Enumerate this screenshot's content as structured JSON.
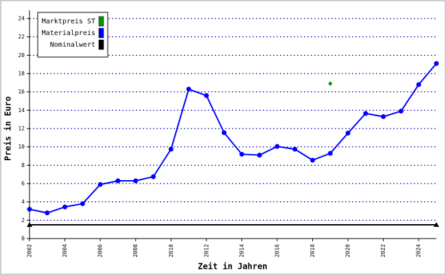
{
  "chart_data": {
    "type": "line",
    "x_label": "Zeit in Jahren",
    "y_label": "Preis in Euro",
    "x": [
      2002,
      2003,
      2004,
      2005,
      2006,
      2007,
      2008,
      2009,
      2010,
      2011,
      2012,
      2013,
      2014,
      2015,
      2016,
      2017,
      2018,
      2019,
      2020,
      2021,
      2022,
      2023,
      2024,
      2025
    ],
    "series": [
      {
        "name": "Marktpreis ST",
        "color": "#009900",
        "marker": "diamond",
        "x": [
          2019
        ],
        "values": [
          16.9
        ]
      },
      {
        "name": "Materialpreis",
        "color": "#0000ff",
        "marker": "circle",
        "values": [
          3.2,
          2.8,
          3.45,
          3.8,
          5.9,
          6.3,
          6.3,
          6.75,
          9.75,
          16.3,
          15.6,
          11.55,
          9.2,
          9.1,
          10.05,
          9.75,
          8.55,
          9.3,
          11.5,
          13.65,
          13.3,
          13.9,
          16.8,
          19.1
        ]
      },
      {
        "name": "Nominalwert",
        "color": "#000000",
        "marker": "triangle",
        "x": [
          2002,
          2025
        ],
        "values": [
          1.5,
          1.5
        ]
      }
    ],
    "xlim": [
      2002,
      2025
    ],
    "xticks": [
      2002,
      2004,
      2006,
      2008,
      2010,
      2012,
      2014,
      2016,
      2018,
      2020,
      2022,
      2024
    ],
    "ylim": [
      0,
      24
    ],
    "yticks": [
      0,
      2,
      4,
      6,
      8,
      10,
      12,
      14,
      16,
      18,
      20,
      22,
      24
    ],
    "grid": true,
    "legend": "top-left"
  }
}
